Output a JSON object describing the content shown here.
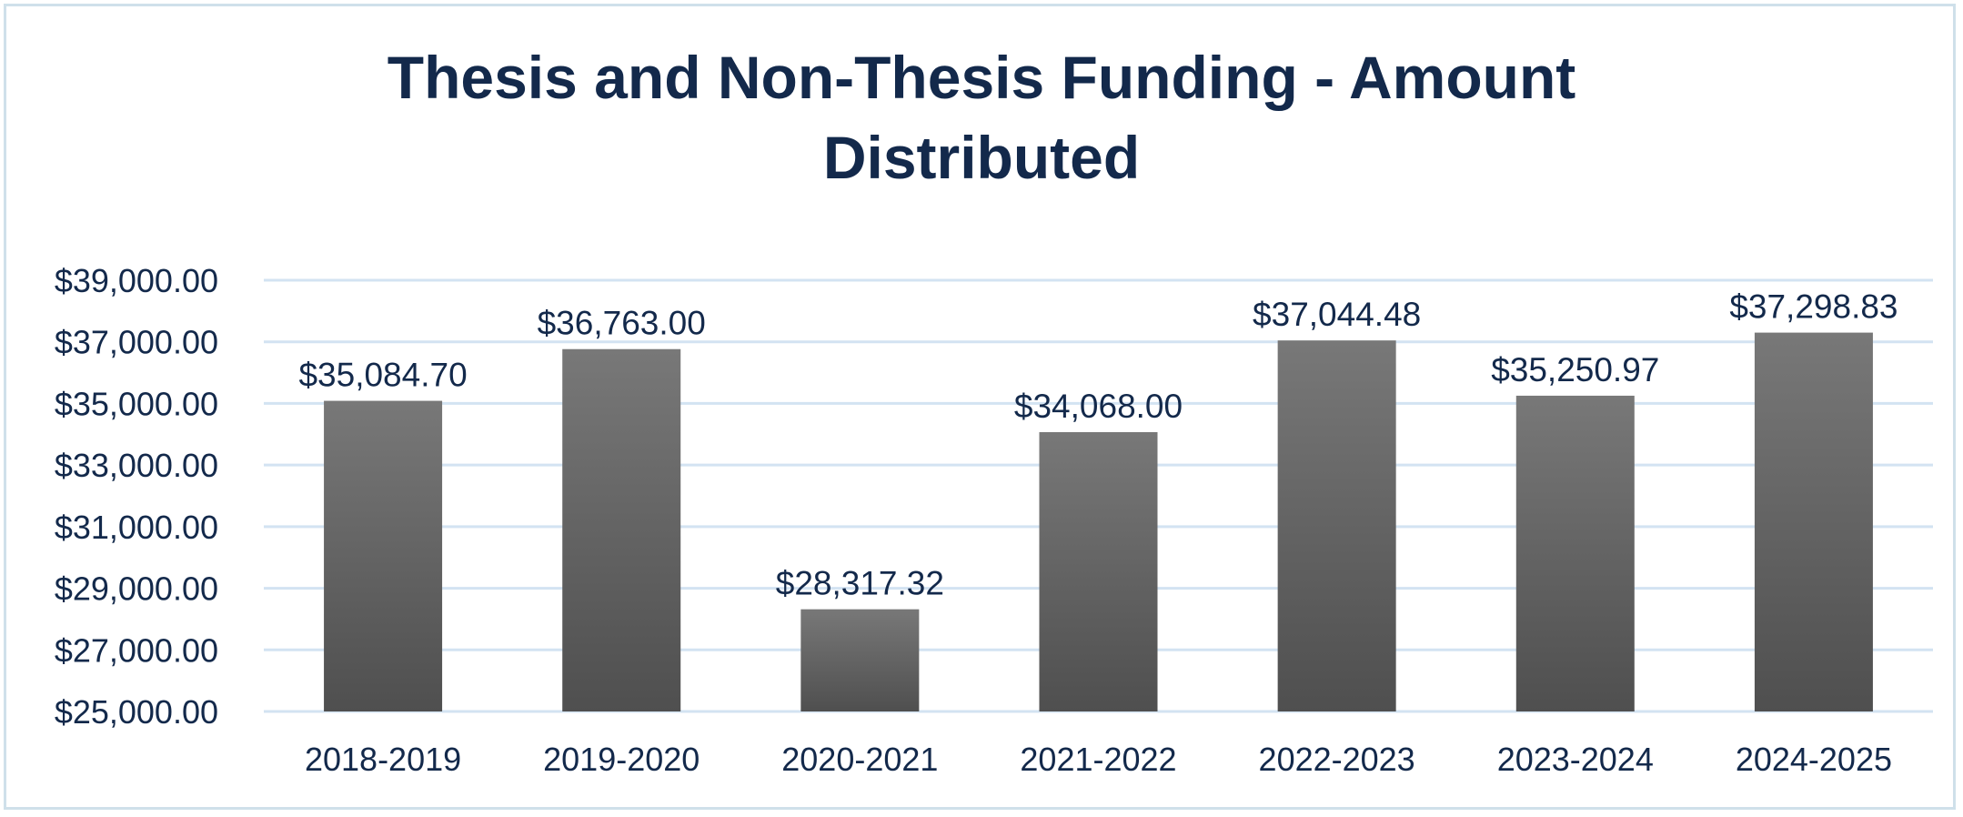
{
  "chart_data": {
    "type": "bar",
    "title": "Thesis and Non-Thesis Funding - Amount Distributed",
    "title_lines": [
      "Thesis and Non-Thesis Funding - Amount",
      "Distributed"
    ],
    "xlabel": "",
    "ylabel": "",
    "categories": [
      "2018-2019",
      "2019-2020",
      "2020-2021",
      "2021-2022",
      "2022-2023",
      "2023-2024",
      "2024-2025"
    ],
    "values": [
      35084.7,
      36763.0,
      28317.32,
      34068.0,
      37044.48,
      35250.97,
      37298.83
    ],
    "data_labels": [
      "$35,084.70",
      "$36,763.00",
      "$28,317.32",
      "$34,068.00",
      "$37,044.48",
      "$35,250.97",
      "$37,298.83"
    ],
    "ylim": [
      25000,
      39000
    ],
    "yticks": [
      25000,
      27000,
      29000,
      31000,
      33000,
      35000,
      37000,
      39000
    ],
    "ytick_labels": [
      "$25,000.00",
      "$27,000.00",
      "$29,000.00",
      "$31,000.00",
      "$33,000.00",
      "$35,000.00",
      "$37,000.00",
      "$39,000.00"
    ],
    "grid": true,
    "legend": "none",
    "colors": {
      "bar_top": "#787878",
      "bar_bottom": "#4f4f4f",
      "gridline": "#d3e3f2",
      "text": "#13294b",
      "border": "#cfe0ea"
    }
  }
}
